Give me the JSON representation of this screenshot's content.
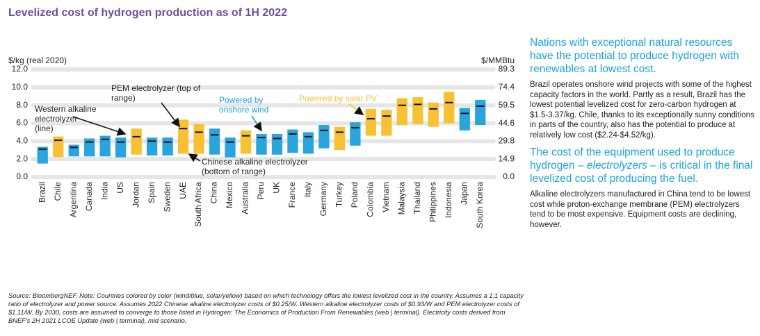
{
  "chart_data": {
    "type": "range_bar",
    "title": "Levelized cost of hydrogen production as of 1H 2022",
    "y_axis_label": "$/kg (real 2020)",
    "y2_axis_label": "$/MMBtu",
    "categories": [
      "Brazil",
      "Chile",
      "Argentina",
      "Canada",
      "India",
      "US",
      "Jordan",
      "Spain",
      "Sweden",
      "UAE",
      "South Africa",
      "China",
      "Mexico",
      "Australia",
      "Peru",
      "UK",
      "France",
      "Italy",
      "Germany",
      "Turkey",
      "Poland",
      "Colombia",
      "Vietnam",
      "Malaysia",
      "Thailand",
      "Philippines",
      "Indonesia",
      "Japan",
      "South Korea"
    ],
    "low": [
      1.5,
      2.24,
      2.3,
      2.3,
      2.3,
      2.2,
      2.5,
      2.4,
      2.4,
      2.6,
      2.6,
      2.5,
      2.2,
      2.6,
      2.5,
      2.5,
      2.7,
      2.6,
      3.2,
      3.0,
      3.5,
      4.6,
      4.6,
      5.8,
      5.9,
      5.6,
      6.0,
      5.2,
      5.8
    ],
    "high": [
      3.37,
      4.52,
      3.6,
      4.3,
      4.6,
      4.4,
      5.4,
      4.4,
      4.4,
      6.4,
      5.9,
      5.4,
      4.4,
      5.2,
      4.8,
      4.8,
      5.3,
      5.0,
      5.8,
      5.6,
      6.1,
      7.6,
      7.5,
      8.8,
      8.9,
      8.3,
      9.5,
      7.7,
      8.6
    ],
    "line": [
      3.1,
      4.1,
      3.3,
      3.9,
      4.2,
      3.9,
      4.5,
      4.0,
      3.9,
      5.4,
      5.0,
      4.7,
      3.9,
      4.6,
      4.4,
      4.3,
      4.8,
      4.5,
      5.2,
      5.0,
      5.5,
      6.5,
      6.8,
      8.0,
      8.1,
      7.6,
      8.3,
      7.1,
      7.9
    ],
    "colors": [
      "#2aa4dc",
      "#f8c132",
      "#2aa4dc",
      "#2aa4dc",
      "#2aa4dc",
      "#2aa4dc",
      "#f8c132",
      "#2aa4dc",
      "#2aa4dc",
      "#f8c132",
      "#f8c132",
      "#2aa4dc",
      "#2aa4dc",
      "#f8c132",
      "#2aa4dc",
      "#2aa4dc",
      "#2aa4dc",
      "#2aa4dc",
      "#2aa4dc",
      "#f8c132",
      "#2aa4dc",
      "#f8c132",
      "#f8c132",
      "#f8c132",
      "#f8c132",
      "#f8c132",
      "#f8c132",
      "#2aa4dc",
      "#2aa4dc"
    ],
    "line_color": "#111111",
    "ylim": [
      0,
      12
    ],
    "yticks": [
      {
        "value": 0,
        "label": "0.0"
      },
      {
        "value": 2,
        "label": "2.0"
      },
      {
        "value": 4,
        "label": "4.0"
      },
      {
        "value": 6,
        "label": "6.0"
      },
      {
        "value": 8,
        "label": "8.0"
      },
      {
        "value": 10,
        "label": "10.0"
      },
      {
        "value": 12,
        "label": "12.0"
      }
    ],
    "y2lim": [
      0,
      89.3
    ],
    "y2ticks": [
      {
        "value": 0,
        "label": "0.0"
      },
      14.9,
      29.8,
      44.6,
      59.5,
      74.4,
      89.3
    ],
    "annotations": [
      {
        "lines": [
          "Western alkaline",
          "electrolyzer",
          "(line)"
        ],
        "color": "#222222"
      },
      {
        "lines": [
          "PEM electrolyzer (top of",
          "range)"
        ],
        "color": "#222222"
      },
      {
        "lines": [
          "Powered by",
          "onshore wind"
        ],
        "color": "#1aa3dc"
      },
      {
        "lines": [
          "Powered by solar PV"
        ],
        "color": "#f8c132"
      },
      {
        "lines": [
          "Chinese alkaline electrolyzer",
          "(bottom of range)"
        ],
        "color": "#222222"
      }
    ]
  },
  "panel": {
    "heading1": "Nations with exceptional natural resources have the potential to produce hydrogen with renewables at lowest cost.",
    "para1": "Brazil operates onshore wind projects with some of the highest capacity factors in the world. Partly as a result, Brazil has the lowest potential levelized cost for zero-carbon hydrogen at $1.5-3.37/kg. Chile, thanks to its exceptionally sunny conditions in parts of the country, also has the potential to produce at relatively low cost ($2.24-$4.52/kg).",
    "heading2_start": "The cost of the equipment used to produce hydrogen – ",
    "heading2_italic": "electrolyzers",
    "heading2_end": " – is critical in the final levelized cost of producing the fuel.",
    "para2": "Alkaline electrolyzers manufactured in China tend to be lowest cost while proton-exchange membrane (PEM) electrolyzers tend to be most expensive. Equipment costs are declining, however."
  },
  "source": "Source: BloombergNEF. Note: Countries colored by color (wind/blue, solar/yellow) based on which technology offers the lowest levelized cost in the country. Assumes a 1:1 capacity ratio of electrolyzer and power source. Assumes 2022 Chinese alkaline electrolyzer costs of $0.25/W. Western alkaline electrolyzer costs of $0.93/W and PEM electrolyzer costs of $1.11/W. By 2030, costs are assumed to converge to those listed in Hydrogen: The Economics of Production From Renewables (web | terminal). Electricity costs derived from BNEF's 2H 2021 LCOE Update (web | terminal), mid scenario."
}
